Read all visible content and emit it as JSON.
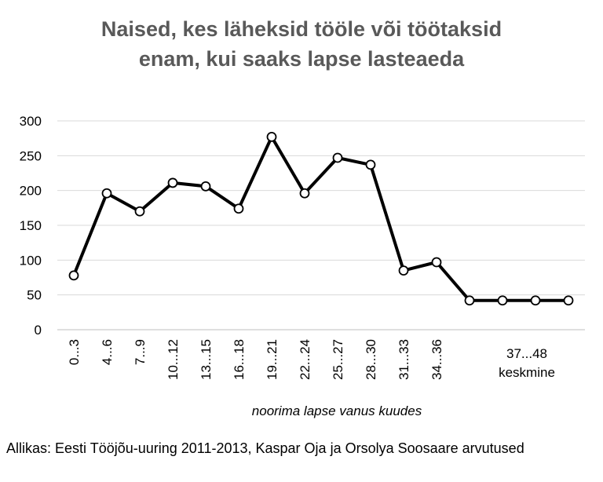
{
  "chart_data": {
    "type": "line",
    "title_lines": [
      "Naised, kes läheksid tööle või töötaksid",
      "enam, kui saaks lapse lasteaeda"
    ],
    "xlabel": "noorima lapse vanus kuudes",
    "ylabel": "",
    "ylim": [
      0,
      300
    ],
    "yticks": [
      0,
      50,
      100,
      150,
      200,
      250,
      300
    ],
    "grid": true,
    "categories": [
      "0...3",
      "4...6",
      "7...9",
      "10...12",
      "13...15",
      "16...18",
      "19...21",
      "22...24",
      "25...27",
      "28...30",
      "31...33",
      "34...36",
      "",
      "",
      "",
      ""
    ],
    "extra_category_label": [
      "37...48",
      "keskmine"
    ],
    "series": [
      {
        "values": [
          78,
          196,
          170,
          211,
          206,
          174,
          277,
          196,
          247,
          237,
          85,
          97,
          42,
          42,
          42,
          42
        ]
      }
    ]
  },
  "source_text": "Allikas: Eesti Tööjõu-uuring 2011-2013,  Kaspar Oja ja Orsolya Soosaare arvutused",
  "colors": {
    "line": "#000000",
    "grid": "#d9d9d9",
    "title": "#595959"
  }
}
